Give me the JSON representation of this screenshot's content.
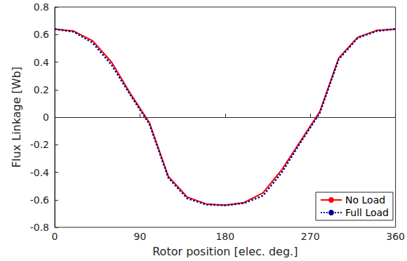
{
  "chart_data": {
    "type": "line",
    "x_label": "Rotor position [elec. deg.]",
    "y_label": "Flux Linkage [Wb]",
    "x": [
      0,
      20,
      40,
      60,
      80,
      100,
      120,
      140,
      160,
      180,
      200,
      220,
      240,
      260,
      280,
      300,
      320,
      340,
      360
    ],
    "series": [
      {
        "name": "No Load",
        "color": "#ff0000",
        "line_style": "solid",
        "marker": "none",
        "values": [
          0.64,
          0.625,
          0.555,
          0.4,
          0.17,
          -0.04,
          -0.43,
          -0.58,
          -0.63,
          -0.64,
          -0.62,
          -0.55,
          -0.38,
          -0.17,
          0.04,
          0.43,
          0.58,
          0.63,
          0.64
        ]
      },
      {
        "name": "Full Load",
        "color": "#00008b",
        "line_style": "dotted",
        "marker": "none",
        "values": [
          0.64,
          0.62,
          0.54,
          0.38,
          0.16,
          -0.05,
          -0.44,
          -0.59,
          -0.635,
          -0.64,
          -0.625,
          -0.57,
          -0.4,
          -0.18,
          0.03,
          0.42,
          0.575,
          0.625,
          0.64
        ]
      }
    ],
    "xlim": [
      0,
      360
    ],
    "xticks": [
      0,
      90,
      180,
      270,
      360
    ],
    "ylim": [
      -0.8,
      0.8
    ],
    "yticks": [
      -0.8,
      -0.6,
      -0.4,
      -0.2,
      0,
      0.2,
      0.4,
      0.6,
      0.8
    ],
    "grid": false,
    "legend": "lower right"
  }
}
